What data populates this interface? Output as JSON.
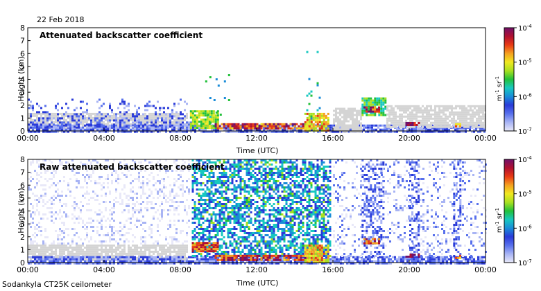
{
  "figure": {
    "date": "22 Feb 2018",
    "instrument": "Sodankyla CT25K ceilometer"
  },
  "colors": {
    "clear_sky": "#d4d4d4",
    "frame": "#000000",
    "colormap": [
      "#e8e8f8",
      "#a8b4f4",
      "#5870ec",
      "#2a3ad8",
      "#1a8cd8",
      "#18c8c0",
      "#22c03a",
      "#a8e020",
      "#f0e820",
      "#f4a020",
      "#e83a14",
      "#b01030",
      "#70106a"
    ]
  },
  "chart_data": [
    {
      "type": "heatmap",
      "title": "Attenuated backscatter coefficient",
      "xlabel": "Time (UTC)",
      "ylabel": "Height (km)",
      "xlim": [
        0,
        24
      ],
      "ylim": [
        0,
        8
      ],
      "x_ticks": [
        {
          "value": 0,
          "label": "00:00"
        },
        {
          "value": 4,
          "label": "04:00"
        },
        {
          "value": 8,
          "label": "08:00"
        },
        {
          "value": 12,
          "label": "12:00"
        },
        {
          "value": 16,
          "label": "16:00"
        },
        {
          "value": 20,
          "label": "20:00"
        },
        {
          "value": 24,
          "label": "00:00"
        }
      ],
      "y_ticks": [
        0,
        1,
        2,
        3,
        4,
        5,
        6,
        7,
        8
      ],
      "colorbar": {
        "label": "m^-1 sr^-1",
        "label_main": "m",
        "label_exp1": "-1",
        "label_mid": " sr",
        "label_exp2": "-1",
        "scale": "log",
        "range": [
          1e-07,
          0.0001
        ],
        "ticks": [
          {
            "value": 0.0001,
            "base": "10",
            "exp": "-4"
          },
          {
            "value": 1e-05,
            "base": "10",
            "exp": "-5"
          },
          {
            "value": 1e-06,
            "base": "10",
            "exp": "-6"
          },
          {
            "value": 1e-07,
            "base": "10",
            "exp": "-7"
          }
        ]
      },
      "features": [
        {
          "kind": "clear_sky",
          "t0": 0.0,
          "t1": 8.3,
          "h0": 0.2,
          "h1": 1.4
        },
        {
          "kind": "boundary_layer",
          "t0": 0.0,
          "t1": 24.0,
          "h0": 0.0,
          "h1": 0.5,
          "level": 2
        },
        {
          "kind": "aerosol",
          "t0": 0.0,
          "t1": 8.6,
          "h0": 0.4,
          "h1": 2.5,
          "level": 2,
          "density": 0.35
        },
        {
          "kind": "cloud_layer",
          "t0": 8.5,
          "t1": 10.0,
          "h0": 0.3,
          "h1": 1.6,
          "level": 7
        },
        {
          "kind": "cloud_base",
          "t0": 9.8,
          "t1": 14.5,
          "h0": 0.2,
          "h1": 0.6,
          "level": 10
        },
        {
          "kind": "precipitation",
          "t0": 14.5,
          "t1": 15.8,
          "h0": 0.0,
          "h1": 1.4,
          "level": 8
        },
        {
          "kind": "scattered",
          "t0": 9.3,
          "t1": 10.6,
          "h0": 0.5,
          "h1": 7.3,
          "level": 5,
          "density": 0.04
        },
        {
          "kind": "scattered",
          "t0": 14.6,
          "t1": 15.3,
          "h0": 1.0,
          "h1": 7.0,
          "level": 5,
          "density": 0.05
        },
        {
          "kind": "clear_sky",
          "t0": 16.0,
          "t1": 17.5,
          "h0": 0.0,
          "h1": 1.8
        },
        {
          "kind": "cloud_layer",
          "t0": 17.5,
          "t1": 18.8,
          "h0": 1.2,
          "h1": 2.6,
          "level": 6
        },
        {
          "kind": "cloud_base",
          "t0": 17.6,
          "t1": 18.4,
          "h0": 1.5,
          "h1": 1.9,
          "level": 10
        },
        {
          "kind": "clear_sky",
          "t0": 18.8,
          "t1": 24.0,
          "h0": 0.3,
          "h1": 2.0
        },
        {
          "kind": "cloud_base",
          "t0": 19.8,
          "t1": 20.5,
          "h0": 0.4,
          "h1": 0.7,
          "level": 11
        },
        {
          "kind": "cloud_base",
          "t0": 22.4,
          "t1": 22.7,
          "h0": 0.3,
          "h1": 0.6,
          "level": 9
        }
      ]
    },
    {
      "type": "heatmap",
      "title": "Raw attenuated backscatter coefficient",
      "xlabel": "Time (UTC)",
      "ylabel": "Height (km)",
      "xlim": [
        0,
        24
      ],
      "ylim": [
        0,
        8
      ],
      "x_ticks": [
        {
          "value": 0,
          "label": "00:00"
        },
        {
          "value": 4,
          "label": "04:00"
        },
        {
          "value": 8,
          "label": "08:00"
        },
        {
          "value": 12,
          "label": "12:00"
        },
        {
          "value": 16,
          "label": "16:00"
        },
        {
          "value": 20,
          "label": "20:00"
        },
        {
          "value": 24,
          "label": "00:00"
        }
      ],
      "y_ticks": [
        0,
        1,
        2,
        3,
        4,
        5,
        6,
        7,
        8
      ],
      "colorbar": {
        "label": "m^-1 sr^-1",
        "label_main": "m",
        "label_exp1": "-1",
        "label_mid": " sr",
        "label_exp2": "-1",
        "scale": "log",
        "range": [
          1e-07,
          0.0001
        ],
        "ticks": [
          {
            "value": 0.0001,
            "base": "10",
            "exp": "-4"
          },
          {
            "value": 1e-05,
            "base": "10",
            "exp": "-5"
          },
          {
            "value": 1e-06,
            "base": "10",
            "exp": "-6"
          },
          {
            "value": 1e-07,
            "base": "10",
            "exp": "-7"
          }
        ]
      },
      "features": [
        {
          "kind": "noise",
          "t0": 0.0,
          "t1": 8.5,
          "h0": 1.5,
          "h1": 8.0,
          "level": 0,
          "density": 0.25
        },
        {
          "kind": "clear_sky",
          "t0": 0.0,
          "t1": 8.3,
          "h0": 0.2,
          "h1": 1.4
        },
        {
          "kind": "boundary_layer",
          "t0": 0.0,
          "t1": 24.0,
          "h0": 0.0,
          "h1": 0.5,
          "level": 2
        },
        {
          "kind": "noise",
          "t0": 8.6,
          "t1": 15.9,
          "h0": 0.5,
          "h1": 8.0,
          "level": 4,
          "density": 0.55
        },
        {
          "kind": "noise",
          "t0": 8.6,
          "t1": 15.9,
          "h0": 0.5,
          "h1": 8.0,
          "level": 6,
          "density": 0.12
        },
        {
          "kind": "cloud_base",
          "t0": 9.8,
          "t1": 14.5,
          "h0": 0.2,
          "h1": 0.6,
          "level": 10
        },
        {
          "kind": "cloud_layer",
          "t0": 8.6,
          "t1": 10.0,
          "h0": 0.9,
          "h1": 1.6,
          "level": 10
        },
        {
          "kind": "precipitation",
          "t0": 14.5,
          "t1": 15.8,
          "h0": 0.0,
          "h1": 1.4,
          "level": 8
        },
        {
          "kind": "noise",
          "t0": 16.0,
          "t1": 24.0,
          "h0": 0.5,
          "h1": 8.0,
          "level": 1,
          "density": 0.18
        },
        {
          "kind": "noise",
          "t0": 17.5,
          "t1": 18.7,
          "h0": 0.5,
          "h1": 8.0,
          "level": 2,
          "density": 0.35
        },
        {
          "kind": "noise",
          "t0": 20.0,
          "t1": 20.5,
          "h0": 0.5,
          "h1": 8.0,
          "level": 2,
          "density": 0.35
        },
        {
          "kind": "noise",
          "t0": 22.3,
          "t1": 22.7,
          "h0": 0.5,
          "h1": 8.0,
          "level": 2,
          "density": 0.35
        },
        {
          "kind": "cloud_base",
          "t0": 17.6,
          "t1": 18.4,
          "h0": 1.5,
          "h1": 1.9,
          "level": 10
        },
        {
          "kind": "cloud_base",
          "t0": 19.8,
          "t1": 20.5,
          "h0": 0.4,
          "h1": 0.7,
          "level": 11
        },
        {
          "kind": "cloud_base",
          "t0": 22.4,
          "t1": 22.7,
          "h0": 0.3,
          "h1": 0.6,
          "level": 9
        }
      ]
    }
  ]
}
